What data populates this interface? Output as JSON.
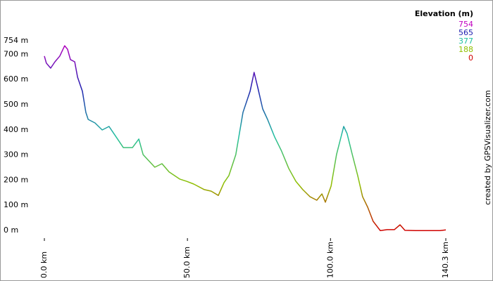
{
  "chart_data": {
    "type": "line",
    "color_legend": {
      "title": "Elevation (m)",
      "stops": [
        {
          "value": 754,
          "color": "#c000c0"
        },
        {
          "value": 565,
          "color": "#2020b0"
        },
        {
          "value": 377,
          "color": "#20c0a0"
        },
        {
          "value": 188,
          "color": "#90c000"
        },
        {
          "value": 0,
          "color": "#d00000"
        }
      ]
    },
    "credit": "created by GPSVisualizer.com",
    "x": [
      0,
      0.7,
      2.2,
      3.7,
      5.4,
      7.1,
      8.1,
      9.1,
      10.6,
      11.6,
      13.3,
      14.5,
      15.3,
      17.7,
      20.2,
      22.6,
      25.1,
      27.6,
      30.8,
      33.0,
      34.5,
      36.7,
      38.6,
      41.1,
      43.6,
      47.3,
      49.7,
      52.2,
      55.9,
      58.3,
      60.8,
      62.8,
      64.5,
      66.9,
      69.4,
      71.9,
      73.3,
      74.6,
      76.3,
      78.0,
      80.5,
      82.9,
      85.4,
      87.9,
      90.3,
      92.8,
      95.2,
      97.0,
      98.2,
      100.2,
      102.1,
      104.6,
      105.8,
      107.5,
      109.5,
      111.2,
      113.0,
      114.9,
      117.4,
      119.8,
      122.3,
      124.3,
      126.0,
      129.7,
      134.6,
      138.3,
      140.3
    ],
    "values": [
      696,
      668,
      648,
      673,
      696,
      737,
      723,
      682,
      673,
      612,
      556,
      472,
      444,
      430,
      402,
      416,
      374,
      332,
      332,
      366,
      304,
      277,
      254,
      268,
      235,
      207,
      198,
      187,
      165,
      159,
      142,
      193,
      221,
      304,
      472,
      556,
      631,
      570,
      486,
      444,
      374,
      318,
      249,
      198,
      165,
      137,
      123,
      148,
      115,
      179,
      304,
      416,
      388,
      310,
      221,
      137,
      95,
      39,
      2,
      6,
      6,
      25,
      3,
      2,
      2,
      2,
      5
    ],
    "xlim": [
      0,
      140.3
    ],
    "ylim": [
      0,
      754
    ],
    "xticks": [
      {
        "value": 0,
        "label": "0.0 km"
      },
      {
        "value": 50,
        "label": "50.0 km"
      },
      {
        "value": 100,
        "label": "100.0 km"
      },
      {
        "value": 140.3,
        "label": "140.3 km"
      }
    ],
    "yticks": [
      {
        "value": 0,
        "label": "0 m"
      },
      {
        "value": 100,
        "label": "100 m"
      },
      {
        "value": 200,
        "label": "200 m"
      },
      {
        "value": 300,
        "label": "300 m"
      },
      {
        "value": 400,
        "label": "400 m"
      },
      {
        "value": 500,
        "label": "500 m"
      },
      {
        "value": 600,
        "label": "600 m"
      },
      {
        "value": 700,
        "label": "700 m"
      },
      {
        "value": 754,
        "label": "754 m"
      }
    ]
  }
}
